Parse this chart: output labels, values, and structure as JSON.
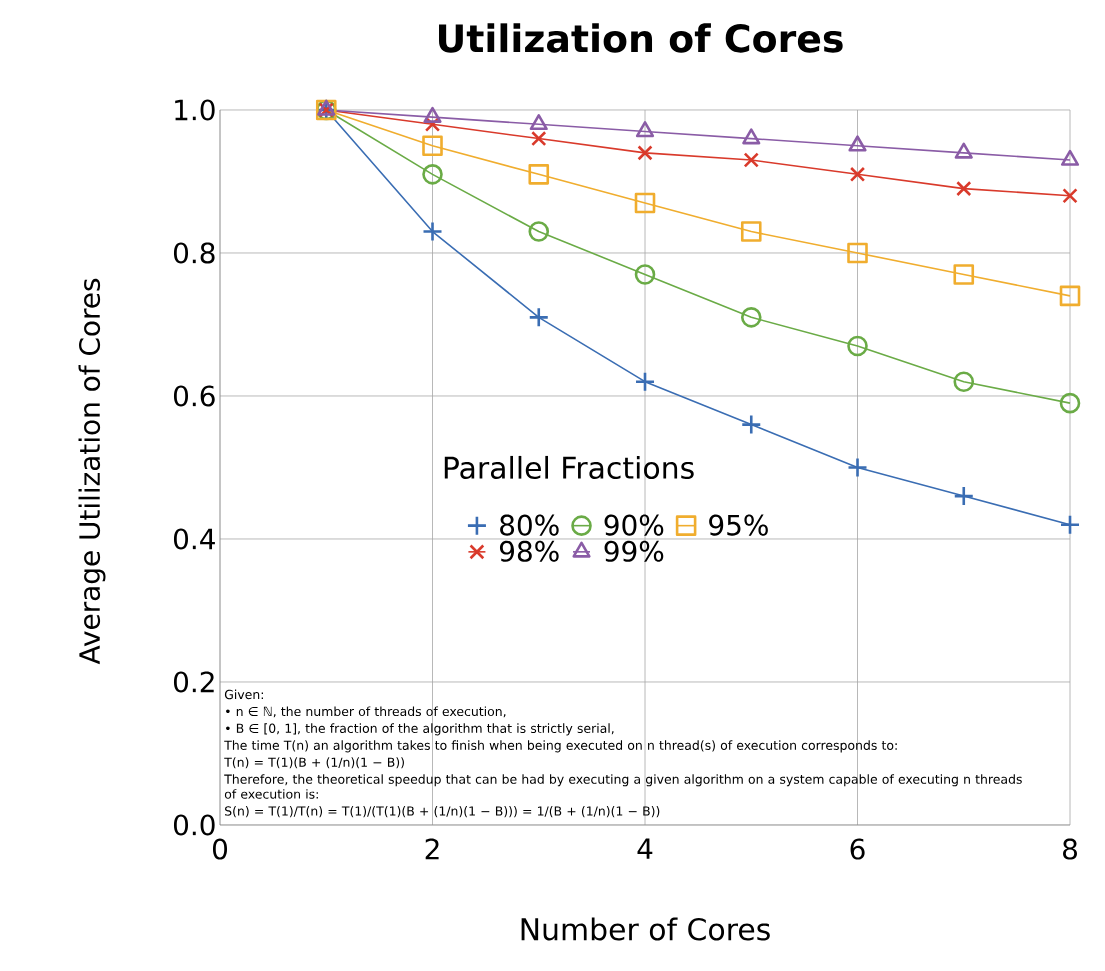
{
  "chart_data": {
    "type": "line",
    "title": "Utilization of Cores",
    "xlabel": "Number of Cores",
    "ylabel": "Average Utilization of Cores",
    "legend_title": "Parallel Fractions",
    "x": [
      1,
      2,
      3,
      4,
      5,
      6,
      7,
      8
    ],
    "xlim": [
      0,
      8
    ],
    "xticks": [
      0,
      2,
      4,
      6,
      8
    ],
    "ylim": [
      0,
      1
    ],
    "yticks": [
      {
        "value": 0,
        "label": "0.0"
      },
      {
        "value": 0.2,
        "label": "0.2"
      },
      {
        "value": 0.4,
        "label": "0.4"
      },
      {
        "value": 0.6,
        "label": "0.6"
      },
      {
        "value": 0.8,
        "label": "0.8"
      },
      {
        "value": 1,
        "label": "1.0"
      }
    ],
    "grid": true,
    "legend": "bottom",
    "series": [
      {
        "name": "80%",
        "color": "#3a6db3",
        "marker": "plus",
        "values": [
          1,
          0.83,
          0.71,
          0.62,
          0.56,
          0.5,
          0.46,
          0.42
        ]
      },
      {
        "name": "90%",
        "color": "#6aab46",
        "marker": "circle",
        "values": [
          1,
          0.91,
          0.83,
          0.77,
          0.71,
          0.67,
          0.62,
          0.59
        ]
      },
      {
        "name": "95%",
        "color": "#f0ad2e",
        "marker": "square",
        "values": [
          1,
          0.95,
          0.91,
          0.87,
          0.83,
          0.8,
          0.77,
          0.74
        ]
      },
      {
        "name": "98%",
        "color": "#d93a2b",
        "marker": "cross",
        "values": [
          1,
          0.98,
          0.96,
          0.94,
          0.93,
          0.91,
          0.89,
          0.88
        ]
      },
      {
        "name": "99%",
        "color": "#8a5ca6",
        "marker": "triangle",
        "values": [
          1,
          0.99,
          0.98,
          0.97,
          0.96,
          0.95,
          0.94,
          0.93
        ]
      }
    ],
    "annotations": [
      "Given:",
      "• n ∈ ℕ, the number of threads of execution,",
      "• B ∈ [0, 1], the fraction of the algorithm that is strictly serial,",
      "The time T(n) an algorithm takes to finish when being executed on n thread(s) of execution corresponds to:",
      "T(n) = T(1)(B + (1/n)(1 − B))",
      "Therefore, the theoretical speedup that can be had by executing a given algorithm on a system capable of executing n threads of execution is:",
      "S(n) = T(1)/T(n) = T(1)/(T(1)(B + (1/n)(1 − B))) = 1/(B + (1/n)(1 − B))"
    ]
  }
}
